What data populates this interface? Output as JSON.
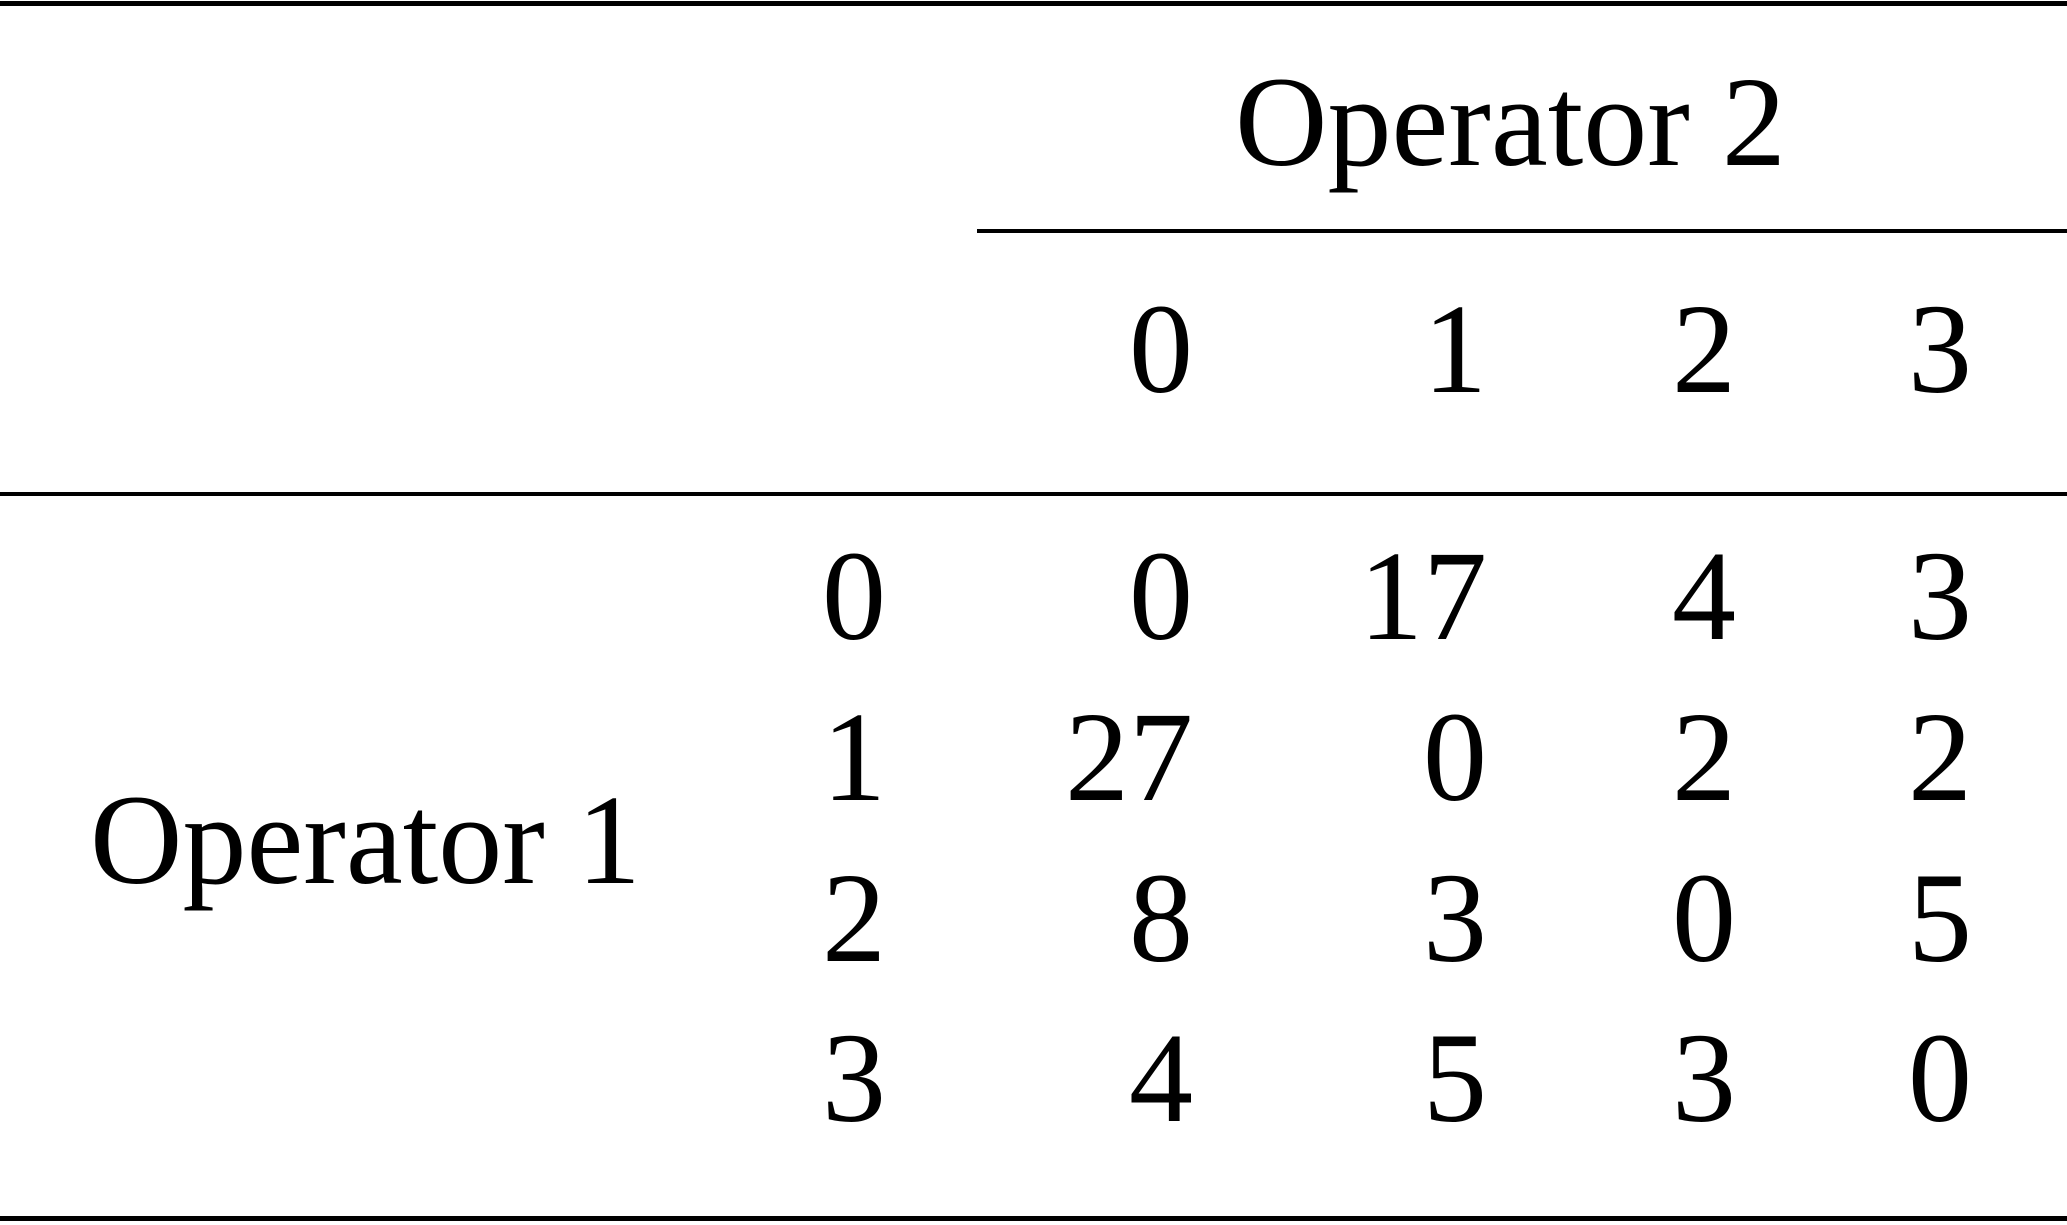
{
  "table": {
    "column_group_label": "Operator 2",
    "row_group_label": "Operator 1",
    "column_headers": [
      "0",
      "1",
      "2",
      "3"
    ],
    "rows": [
      {
        "label": "0",
        "cells": [
          "0",
          "17",
          "4",
          "3"
        ]
      },
      {
        "label": "1",
        "cells": [
          "27",
          "0",
          "2",
          "2"
        ]
      },
      {
        "label": "2",
        "cells": [
          "8",
          "3",
          "0",
          "5"
        ]
      },
      {
        "label": "3",
        "cells": [
          "4",
          "5",
          "3",
          "0"
        ]
      }
    ]
  }
}
